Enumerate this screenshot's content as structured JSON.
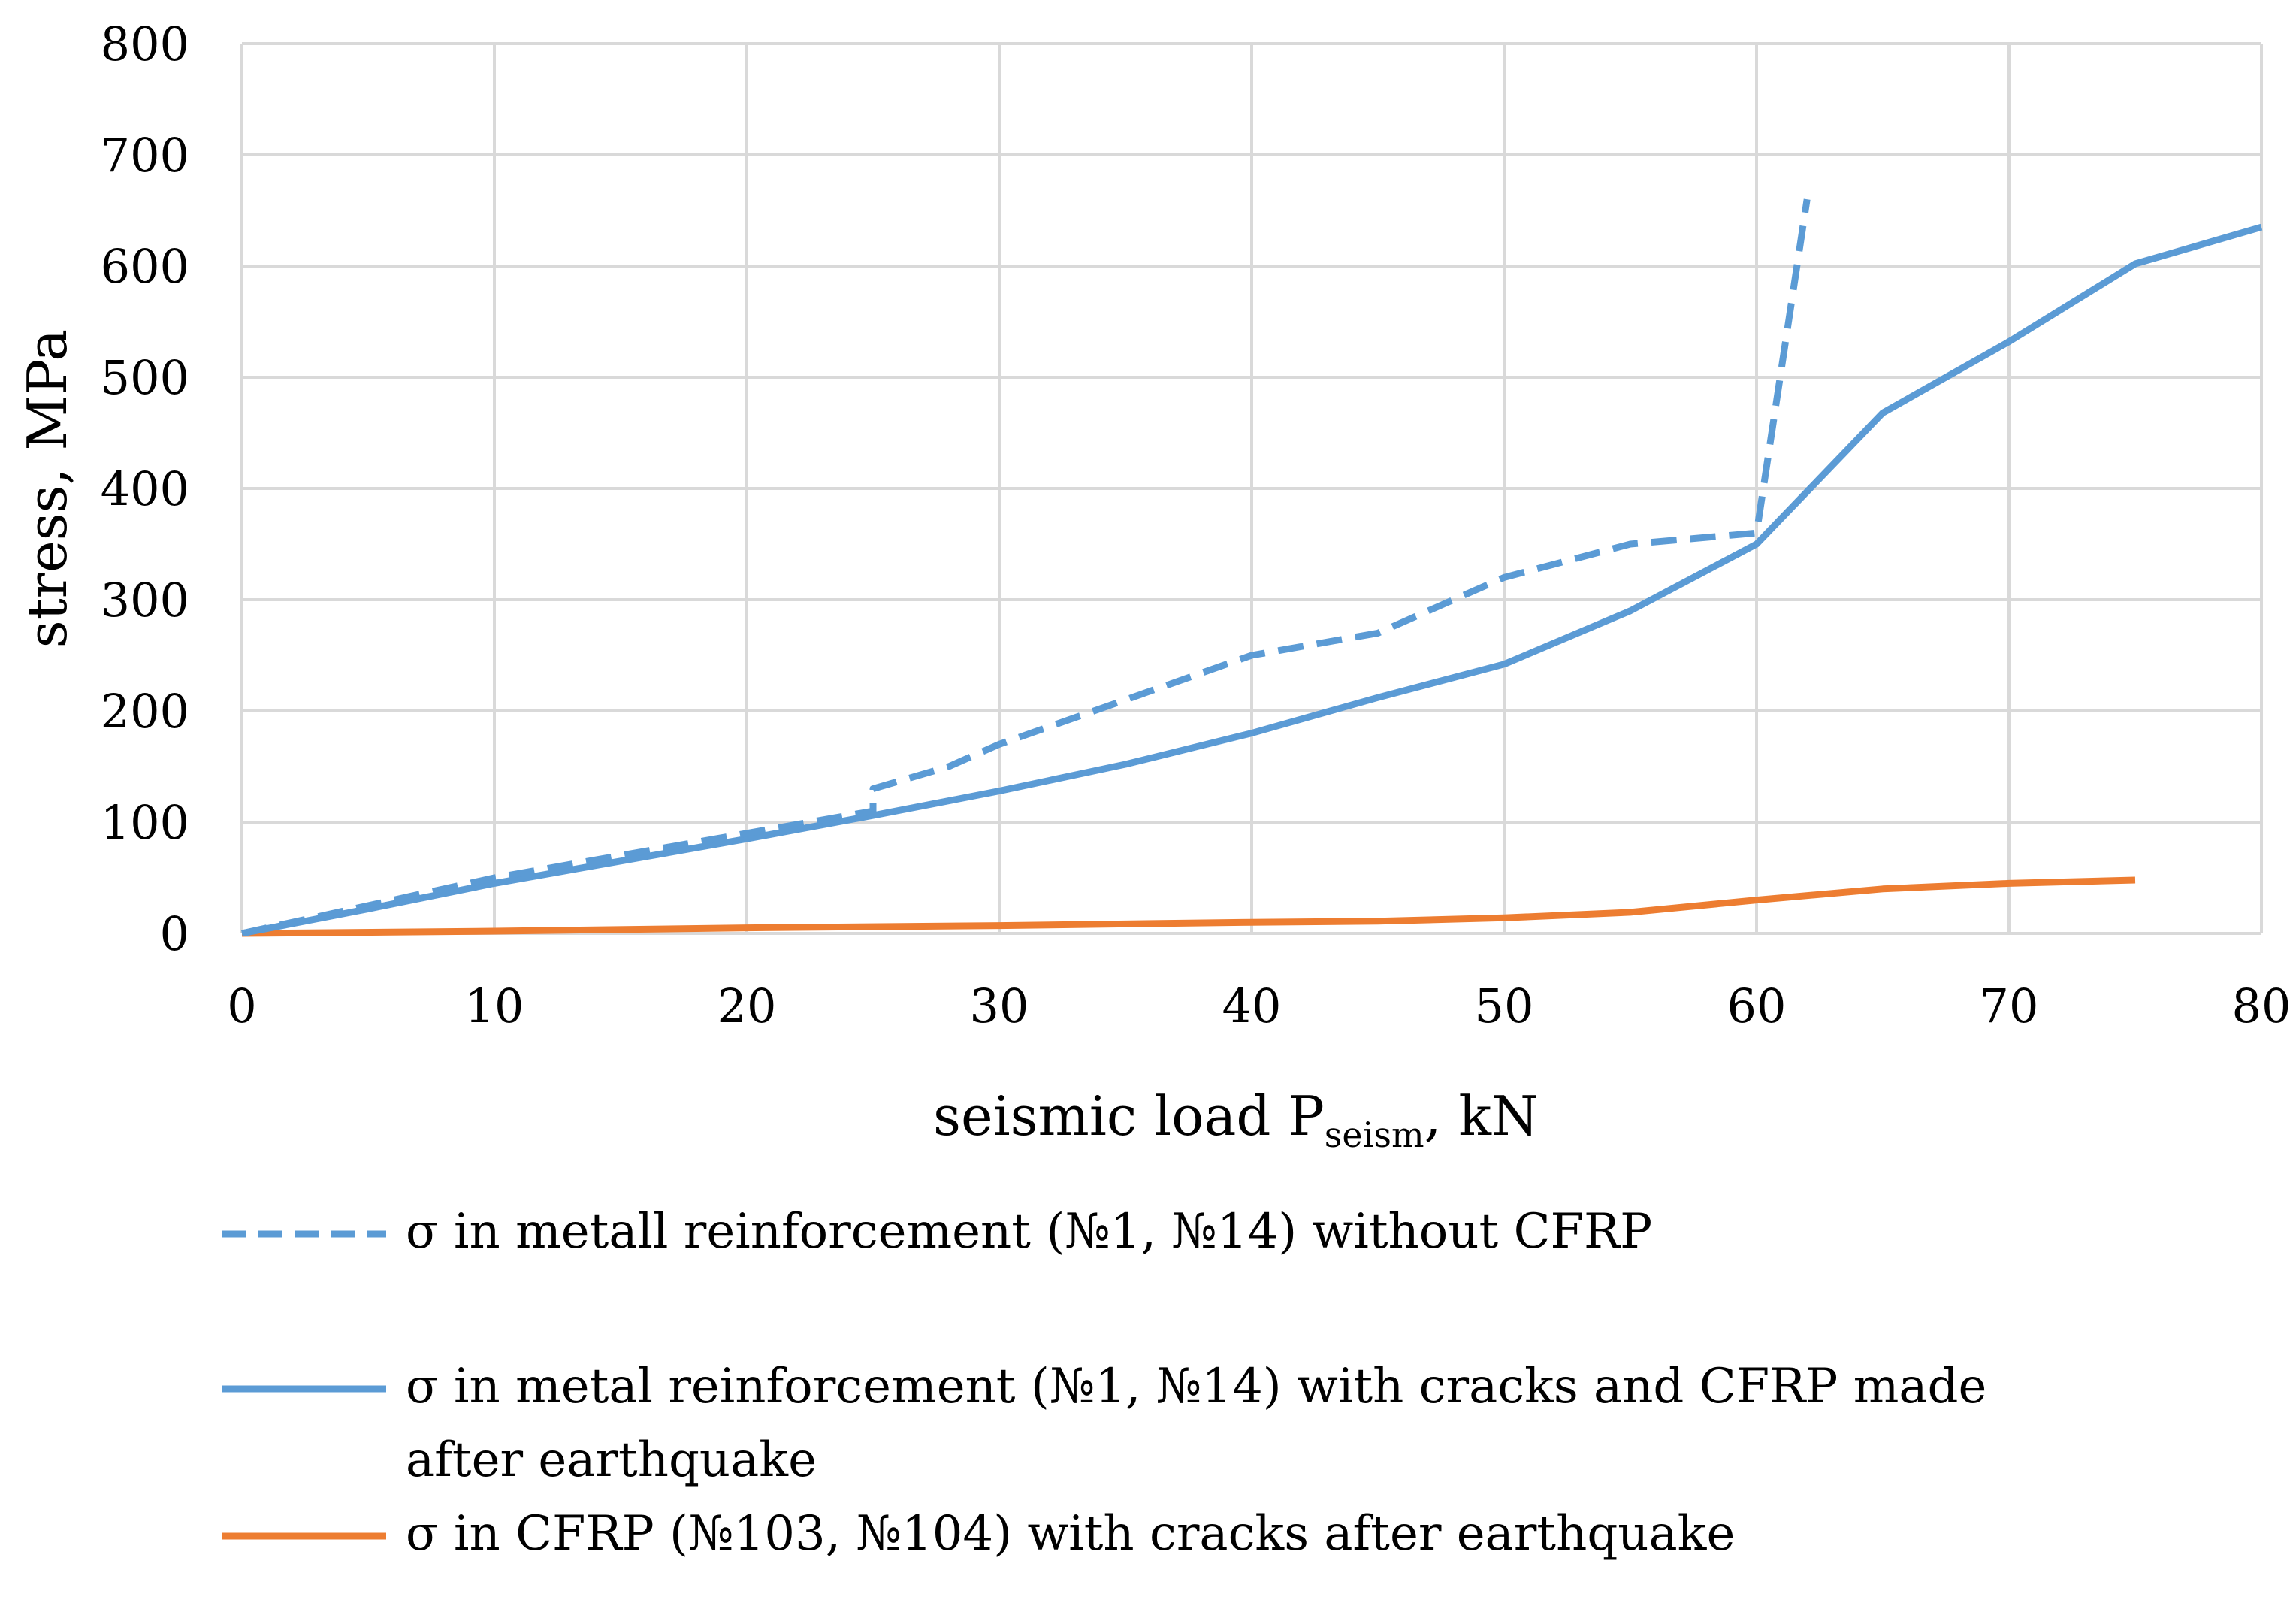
{
  "chart_data": {
    "type": "line",
    "title": "",
    "xlabel": "seismic load P",
    "xlabel_sub": "seism",
    "xlabel_suffix": ", kN",
    "ylabel": "stress, MPa",
    "xlim": [
      0,
      80
    ],
    "ylim": [
      0,
      800
    ],
    "xticks": [
      0,
      10,
      20,
      30,
      40,
      50,
      60,
      70,
      80
    ],
    "yticks": [
      0,
      100,
      200,
      300,
      400,
      500,
      600,
      700,
      800
    ],
    "grid": true,
    "legend_position": "bottom",
    "series": [
      {
        "name": "σ in metall reinforcement (№1, №14) without CFRP",
        "color": "#5b9bd5",
        "style": "dashed",
        "x": [
          0,
          5,
          10,
          15,
          20,
          25,
          25,
          28,
          30,
          35,
          40,
          45,
          50,
          55,
          60,
          60,
          62
        ],
        "y": [
          0,
          25,
          50,
          70,
          90,
          110,
          130,
          150,
          170,
          210,
          250,
          270,
          320,
          350,
          360,
          360,
          660
        ]
      },
      {
        "name": "σ in metal reinforcement (№1, №14) with cracks and CFRP made after earthquake",
        "color": "#5b9bd5",
        "style": "solid",
        "x": [
          0,
          5,
          10,
          15,
          20,
          25,
          30,
          35,
          40,
          45,
          50,
          55,
          60,
          65,
          70,
          75,
          80
        ],
        "y": [
          0,
          22,
          45,
          65,
          85,
          106,
          128,
          152,
          180,
          212,
          242,
          290,
          350,
          468,
          532,
          602,
          635
        ]
      },
      {
        "name": "σ in CFRP (№103, №104) with cracks after earthquake",
        "color": "#ed7d31",
        "style": "solid",
        "x": [
          0,
          10,
          20,
          30,
          40,
          45,
          50,
          55,
          60,
          65,
          70,
          75
        ],
        "y": [
          0,
          2,
          5,
          7,
          10,
          11,
          14,
          19,
          30,
          40,
          45,
          48
        ]
      }
    ]
  },
  "legend": {
    "items": [
      {
        "label": "σ in metall reinforcement (№1, №14) without CFRP"
      },
      {
        "label": "σ in metal reinforcement (№1, №14) with cracks and CFRP made after earthquake"
      },
      {
        "label": "σ in CFRP (№103, №104) with cracks after earthquake"
      }
    ]
  }
}
